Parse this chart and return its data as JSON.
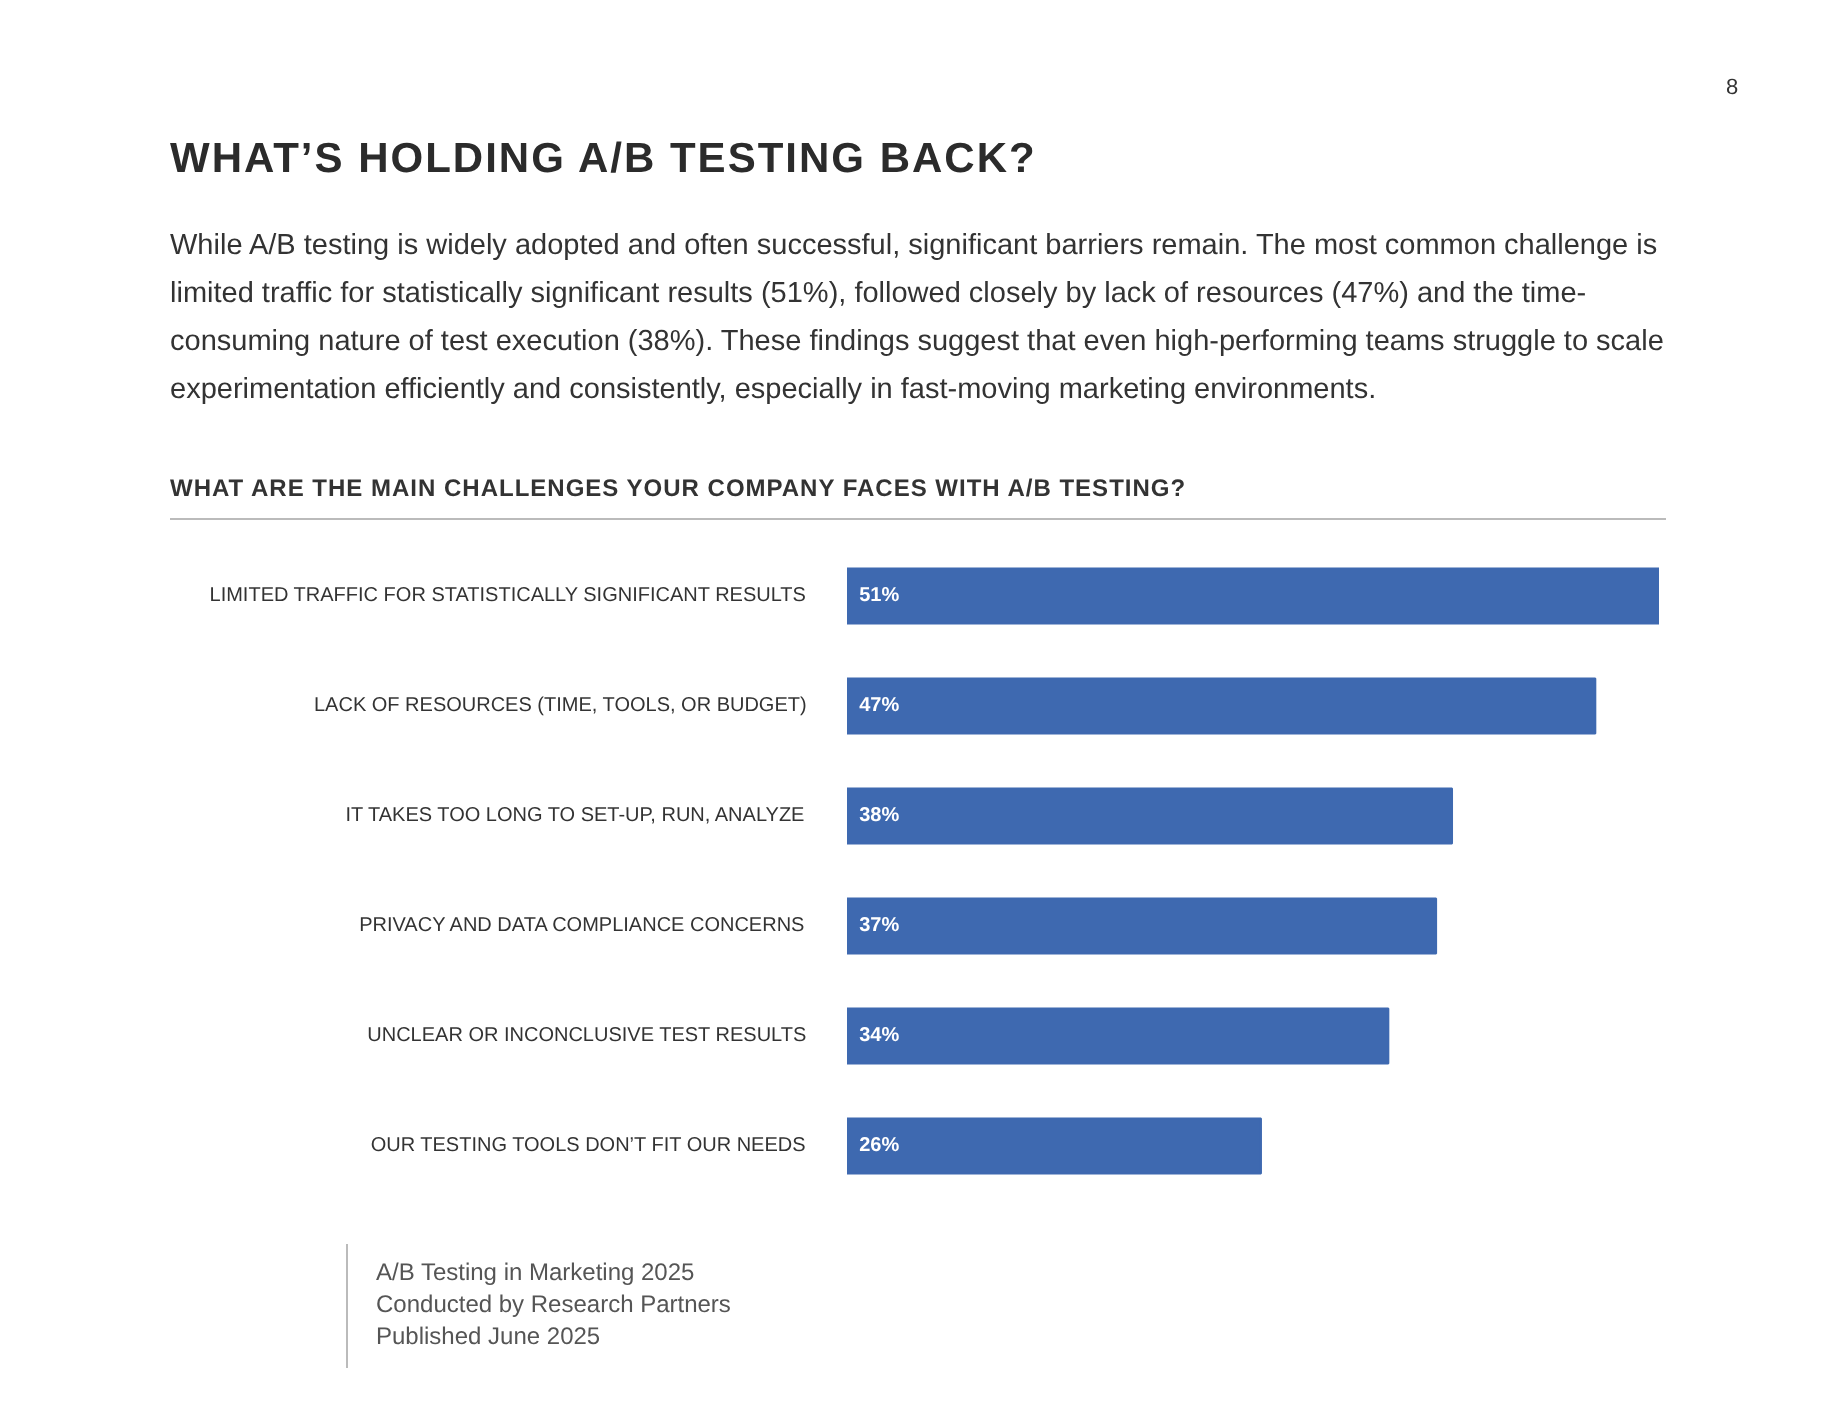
{
  "chart_data": {
    "type": "bar",
    "orientation": "horizontal",
    "title": "WHAT’S HOLDING A/B TESTING BACK?",
    "subtitle": "While A/B testing is widely adopted and often successful, significant barriers remain. The most common challenge is limited traffic for statistically significant results (51%), followed closely by lack of resources (47%) and the time-consuming nature of test execution (38%). These findings suggest that even high-performing teams struggle to scale experimentation efficiently and consistently, especially in fast-moving marketing environments.",
    "annotations": [
      "8",
      "WHAT ARE THE MAIN CHALLENGES YOUR COMPANY FACES WITH A/B TESTING?",
      "A/B Testing in Marketing 2025",
      "Conducted by Research Partners",
      "Published June 2025"
    ],
    "categories": [
      "LIMITED TRAFFIC FOR STATISTICALLY SIGNIFICANT RESULTS",
      "LACK OF RESOURCES (TIME, TOOLS, OR BUDGET)",
      "IT TAKES TOO LONG TO SET-UP, RUN, ANALYZE",
      "PRIVACY AND DATA COMPLIANCE CONCERNS",
      "UNCLEAR OR INCONCLUSIVE TEST RESULTS",
      "OUR TESTING TOOLS DON’T FIT OUR NEEDS"
    ],
    "values": [
      51,
      47,
      38,
      37,
      34,
      26
    ],
    "value_labels": [
      "51%",
      "47%",
      "38%",
      "37%",
      "34%",
      "26%"
    ],
    "color": "#3e69b0",
    "grid": false
  }
}
